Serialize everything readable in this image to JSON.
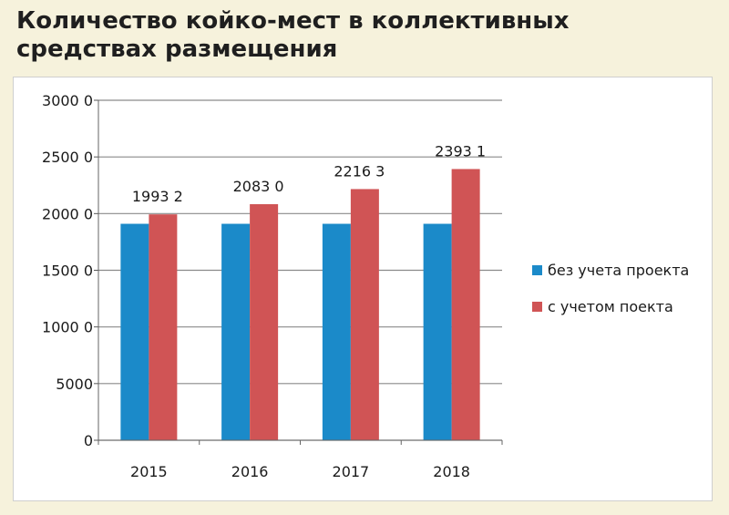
{
  "header": {
    "title": "Количество койко-мест в коллективных средствах размещения"
  },
  "chart_data": {
    "type": "bar",
    "title": "",
    "xlabel": "",
    "ylabel": "",
    "categories": [
      "2015",
      "2016",
      "2017",
      "2018"
    ],
    "series": [
      {
        "name": "без учета проекта",
        "color": "#1b8ac9",
        "values": [
          19100,
          19100,
          19100,
          19100
        ]
      },
      {
        "name": "с учетом поекта",
        "color": "#d05455",
        "values": [
          19932,
          20830,
          22163,
          23931
        ]
      }
    ],
    "data_labels": [
      "1993 2",
      "2083 0",
      "2216 3",
      "2393 1"
    ],
    "yticks": [
      "0",
      "5000",
      "1000 0",
      "1500 0",
      "2000 0",
      "2500 0",
      "3000 0"
    ],
    "ylim": [
      0,
      30000
    ],
    "grid": true,
    "legend_position": "right"
  }
}
